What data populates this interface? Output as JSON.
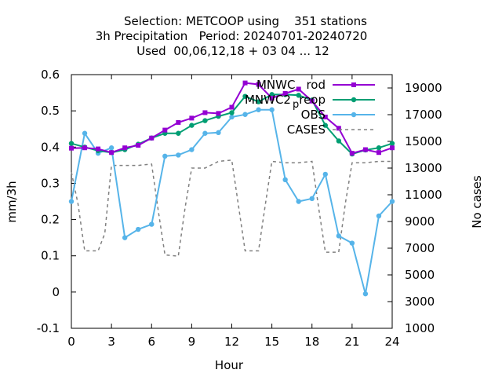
{
  "chart_data": {
    "type": "line",
    "title_lines": [
      "Selection: METCOOP using    351 stations",
      "3h Precipitation   Period: 20240701-20240720",
      "Used  00,06,12,18 + 03 04 ... 12"
    ],
    "xlabel": "Hour",
    "ylabel": "mm/3h",
    "y2label": "No cases",
    "xlim": [
      0,
      24
    ],
    "ylim": [
      -0.1,
      0.6
    ],
    "y2lim": [
      1000,
      20000
    ],
    "xticks": [
      "0",
      "3",
      "6",
      "9",
      "12",
      "15",
      "18",
      "21",
      "24"
    ],
    "yticks": [
      "-0.1",
      "0",
      "0.1",
      "0.2",
      "0.3",
      "0.4",
      "0.5",
      "0.6"
    ],
    "y2ticks": [
      "1000",
      "3000",
      "5000",
      "7000",
      "9000",
      "11000",
      "13000",
      "15000",
      "17000",
      "19000"
    ],
    "legend_position": "top-right",
    "series": [
      {
        "name": "MNWC_rod",
        "legend_label_parts": [
          "MNWC",
          "rod"
        ],
        "color": "#9400d3",
        "marker": "filled-square",
        "x": [
          0,
          1,
          2,
          3,
          4,
          5,
          6,
          7,
          8,
          9,
          10,
          11,
          12,
          13,
          14,
          15,
          16,
          17,
          18,
          19,
          20,
          21,
          22,
          23,
          24
        ],
        "values": [
          0.397,
          0.398,
          0.395,
          0.385,
          0.398,
          0.405,
          0.425,
          0.447,
          0.468,
          0.48,
          0.495,
          0.493,
          0.51,
          0.577,
          0.573,
          0.535,
          0.548,
          0.56,
          0.527,
          0.483,
          0.452,
          0.383,
          0.393,
          0.385,
          0.398
        ]
      },
      {
        "name": "MNWC2_preop",
        "legend_label_parts": [
          "MNWC2",
          "p",
          "reop"
        ],
        "color": "#009e73",
        "marker": "filled-circle",
        "x": [
          0,
          1,
          2,
          3,
          4,
          5,
          6,
          7,
          8,
          9,
          10,
          11,
          12,
          13,
          14,
          15,
          16,
          17,
          18,
          19,
          20,
          21,
          22,
          23,
          24
        ],
        "values": [
          0.41,
          0.4,
          0.39,
          0.385,
          0.393,
          0.408,
          0.425,
          0.438,
          0.438,
          0.46,
          0.473,
          0.485,
          0.495,
          0.54,
          0.525,
          0.545,
          0.545,
          0.543,
          0.53,
          0.46,
          0.417,
          0.381,
          0.392,
          0.398,
          0.41
        ]
      },
      {
        "name": "OBS",
        "color": "#56b4e9",
        "marker": "filled-circle",
        "x": [
          0,
          1,
          2,
          3,
          4,
          5,
          6,
          7,
          8,
          9,
          10,
          11,
          12,
          13,
          14,
          15,
          16,
          17,
          18,
          19,
          20,
          21,
          22,
          23,
          24
        ],
        "values": [
          0.25,
          0.438,
          0.383,
          0.398,
          0.15,
          0.173,
          0.187,
          0.375,
          0.378,
          0.393,
          0.438,
          0.44,
          0.483,
          0.49,
          0.503,
          0.503,
          0.31,
          0.25,
          0.258,
          0.325,
          0.155,
          0.135,
          -0.005,
          0.21,
          0.25
        ]
      },
      {
        "name": "CASES",
        "color": "#808080",
        "axis": "y2",
        "style": "dashed",
        "x": [
          0,
          0.5,
          1,
          2,
          2.5,
          3,
          4,
          5,
          6,
          6.5,
          7,
          8,
          8.5,
          9,
          10,
          11,
          12,
          12.5,
          13,
          14,
          14.5,
          15,
          16,
          17,
          18,
          18.5,
          19,
          20,
          20.5,
          21,
          22,
          23,
          24
        ],
        "values": [
          12700,
          10300,
          6800,
          6800,
          8100,
          13200,
          13200,
          13200,
          13300,
          9800,
          6500,
          6400,
          10000,
          13000,
          13000,
          13500,
          13600,
          10200,
          6800,
          6800,
          10200,
          13500,
          13400,
          13400,
          13500,
          10000,
          6700,
          6700,
          10400,
          13400,
          13400,
          13500,
          13500
        ]
      }
    ]
  }
}
